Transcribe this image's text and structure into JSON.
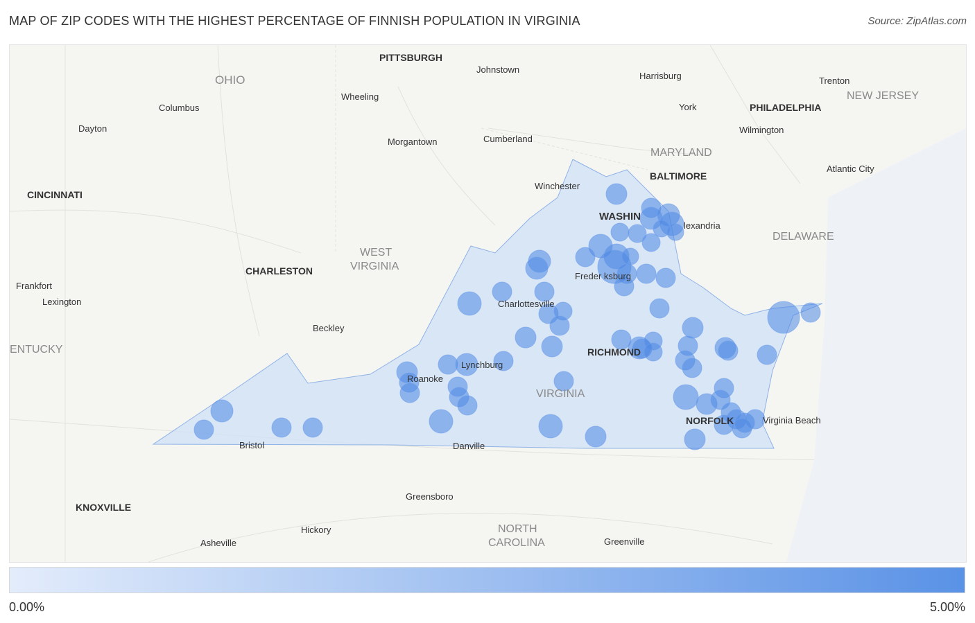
{
  "title": "MAP OF ZIP CODES WITH THE HIGHEST PERCENTAGE OF FINNISH POPULATION IN VIRGINIA",
  "source": "Source: ZipAtlas.com",
  "legend": {
    "min_label": "0.00%",
    "max_label": "5.00%",
    "color_low": "#e3ecfb",
    "color_high": "#5a92e6"
  },
  "colors": {
    "state_fill": "#cfe0f7",
    "state_stroke": "#8fb2e6",
    "bubble": "#4f88e4",
    "label": "#333333",
    "region_label": "#8a8a8a"
  },
  "labels": {
    "pittsburgh": "PITTSBURGH",
    "johnstown": "Johnstown",
    "harrisburg": "Harrisburg",
    "trenton": "Trenton",
    "ohio": "OHIO",
    "new_jersey": "NEW JERSEY",
    "columbus": "Columbus",
    "wheeling": "Wheeling",
    "york": "York",
    "philadelphia": "PHILADELPHIA",
    "dayton": "Dayton",
    "wilmington": "Wilmington",
    "morgantown": "Morgantown",
    "cumberland": "Cumberland",
    "maryland": "MARYLAND",
    "baltimore": "BALTIMORE",
    "atlantic_city": "Atlantic City",
    "cincinnati": "CINCINNATI",
    "winchester": "Winchester",
    "washington": "WASHIN",
    "alexandria": "lexandria",
    "delaware": "DELAWARE",
    "west": "WEST",
    "virginia_wv": "VIRGINIA",
    "charleston": "CHARLESTON",
    "fredericksburg": "Freder   ksburg",
    "frankfort": "Frankfort",
    "lexington": "Lexington",
    "charlottesville": "Charlottesville",
    "beckley": "Beckley",
    "kentucky": "ENTUCKY",
    "richmond": "RICHMOND",
    "lynchburg": "Lynchburg",
    "roanoke": "Roanoke",
    "virginia": "VIRGINIA",
    "norfolk": "NORFOLK",
    "virginia_beach": "Virginia Beach",
    "bristol": "Bristol",
    "danville": "Danville",
    "greensboro": "Greensboro",
    "knoxville": "KNOXVILLE",
    "north": "NORTH",
    "carolina": "CAROLINA",
    "hickory": "Hickory",
    "asheville": "Asheville",
    "greenville": "Greenville"
  }
}
